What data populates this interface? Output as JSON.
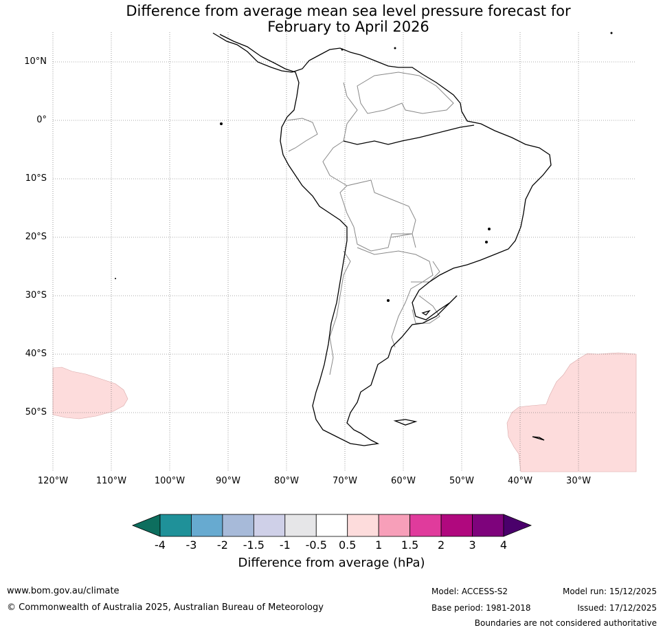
{
  "title_line1": "Difference from average mean sea level pressure forecast for",
  "title_line2": "February to April 2026",
  "lat_labels": [
    "10°N",
    "0°",
    "10°S",
    "20°S",
    "30°S",
    "40°S",
    "50°S"
  ],
  "lon_labels": [
    "120°W",
    "110°W",
    "100°W",
    "90°W",
    "80°W",
    "70°W",
    "60°W",
    "50°W",
    "40°W",
    "30°W"
  ],
  "colorbar": {
    "label": "Difference from average (hPa)",
    "ticks": [
      "-4",
      "-3",
      "-2",
      "-1.5",
      "-1",
      "-0.5",
      "0.5",
      "1",
      "1.5",
      "2",
      "3",
      "4"
    ],
    "colors": [
      "#0d6e5e",
      "#1f9199",
      "#67aad0",
      "#a7bad9",
      "#cfd0e8",
      "#e6e6e8",
      "#ffffff",
      "#fddcdc",
      "#f79fb9",
      "#e03b9c",
      "#b0087e",
      "#7e037c",
      "#4a006b"
    ]
  },
  "footer": {
    "website": "www.bom.gov.au/climate",
    "copyright": "© Commonwealth of Australia 2025, Australian Bureau of Meteorology",
    "model": "Model: ACCESS-S2",
    "base_period": "Base period: 1981-2018",
    "model_run": "Model run: 15/12/2025",
    "issued": "Issued: 17/12/2025",
    "disclaimer": "Boundaries are not considered authoritative"
  },
  "anomaly_fill_color": "#fddcdc"
}
